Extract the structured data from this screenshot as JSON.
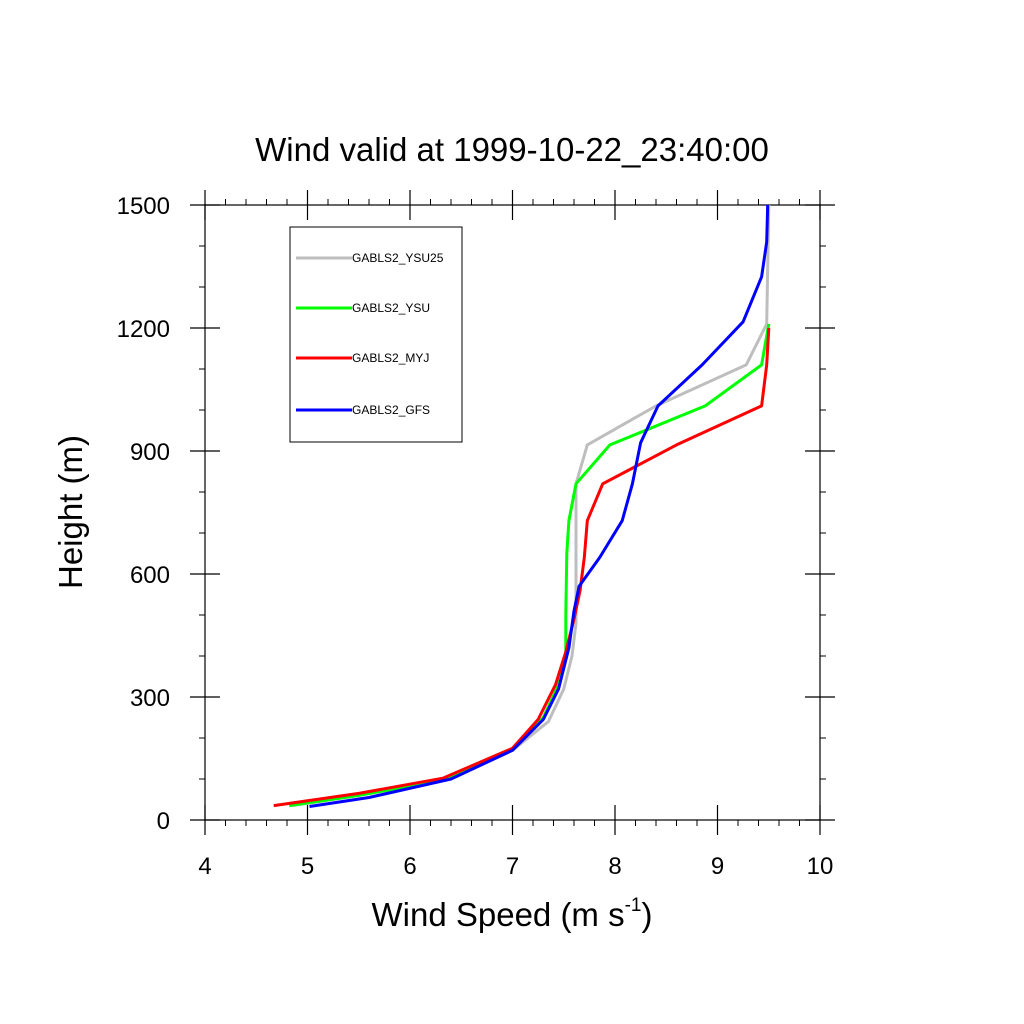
{
  "chart_data": {
    "type": "line",
    "title": "Wind valid at 1999-10-22_23:40:00",
    "xlabel": "Wind Speed (m s",
    "xlabel_sup": "-1",
    "xlabel_end": ")",
    "ylabel": "Height (m)",
    "xlim": [
      4,
      10
    ],
    "ylim": [
      0,
      1500
    ],
    "xticks": [
      4,
      5,
      6,
      7,
      8,
      9,
      10
    ],
    "yticks": [
      0,
      300,
      600,
      900,
      1200,
      1500
    ],
    "x_minor_step": 0.2,
    "y_minor_step": 100,
    "grid": false,
    "legend_position": "top-left",
    "series": [
      {
        "name": "GABLS2_YSU25",
        "color": "#bebebe",
        "points": [
          [
            4.85,
            35
          ],
          [
            5.5,
            60
          ],
          [
            6.4,
            100
          ],
          [
            7.0,
            170
          ],
          [
            7.35,
            240
          ],
          [
            7.5,
            320
          ],
          [
            7.58,
            400
          ],
          [
            7.62,
            480
          ],
          [
            7.62,
            700
          ],
          [
            7.62,
            820
          ],
          [
            7.73,
            915
          ],
          [
            8.4,
            1010
          ],
          [
            9.28,
            1110
          ],
          [
            9.48,
            1210
          ],
          [
            9.5,
            1500
          ]
        ]
      },
      {
        "name": "GABLS2_YSU",
        "color": "#00ff00",
        "points": [
          [
            4.82,
            35
          ],
          [
            5.5,
            60
          ],
          [
            6.37,
            100
          ],
          [
            7.0,
            172
          ],
          [
            7.3,
            250
          ],
          [
            7.45,
            330
          ],
          [
            7.52,
            400
          ],
          [
            7.52,
            500
          ],
          [
            7.53,
            650
          ],
          [
            7.55,
            730
          ],
          [
            7.62,
            820
          ],
          [
            7.95,
            915
          ],
          [
            8.88,
            1010
          ],
          [
            9.43,
            1110
          ],
          [
            9.5,
            1210
          ]
        ]
      },
      {
        "name": "GABLS2_MYJ",
        "color": "#ff0000",
        "points": [
          [
            4.67,
            35
          ],
          [
            5.5,
            65
          ],
          [
            6.32,
            102
          ],
          [
            7.0,
            175
          ],
          [
            7.25,
            245
          ],
          [
            7.42,
            330
          ],
          [
            7.52,
            410
          ],
          [
            7.6,
            490
          ],
          [
            7.66,
            560
          ],
          [
            7.7,
            640
          ],
          [
            7.73,
            730
          ],
          [
            7.88,
            820
          ],
          [
            8.6,
            915
          ],
          [
            9.43,
            1010
          ],
          [
            9.48,
            1110
          ],
          [
            9.5,
            1200
          ]
        ]
      },
      {
        "name": "GABLS2_GFS",
        "color": "#0000ff",
        "points": [
          [
            5.02,
            33
          ],
          [
            5.6,
            55
          ],
          [
            6.4,
            100
          ],
          [
            7.0,
            170
          ],
          [
            7.3,
            245
          ],
          [
            7.45,
            320
          ],
          [
            7.55,
            420
          ],
          [
            7.6,
            510
          ],
          [
            7.65,
            570
          ],
          [
            7.85,
            640
          ],
          [
            8.07,
            730
          ],
          [
            8.17,
            820
          ],
          [
            8.25,
            920
          ],
          [
            8.42,
            1010
          ],
          [
            8.85,
            1110
          ],
          [
            9.25,
            1215
          ],
          [
            9.43,
            1325
          ],
          [
            9.48,
            1410
          ],
          [
            9.49,
            1500
          ]
        ]
      }
    ]
  }
}
